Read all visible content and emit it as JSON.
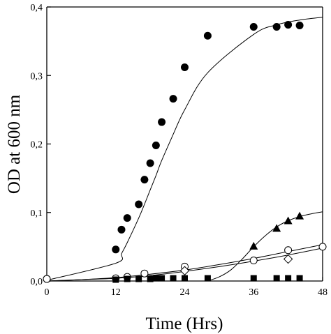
{
  "chart_data": {
    "type": "scatter",
    "title": "",
    "xlabel": "Time (Hrs)",
    "ylabel": "OD at 600 nm",
    "xlim": [
      0,
      48
    ],
    "ylim": [
      0,
      0.4
    ],
    "xticks": [
      0,
      12,
      24,
      36,
      48
    ],
    "xtick_labels": [
      "0",
      "12",
      "24",
      "36",
      "48"
    ],
    "yticks": [
      0,
      0.1,
      0.2,
      0.3,
      0.4
    ],
    "ytick_labels": [
      "0,0",
      "0,1",
      "0,2",
      "0,3",
      "0,4"
    ],
    "grid": false,
    "legend": "none",
    "series": [
      {
        "marker": "filled-circle",
        "fit_curve": true,
        "x": [
          0,
          12,
          13,
          14,
          16,
          17,
          18,
          19,
          20,
          22,
          24,
          28,
          36,
          40,
          42,
          44
        ],
        "y": [
          0.003,
          0.046,
          0.075,
          0.092,
          0.112,
          0.148,
          0.172,
          0.198,
          0.232,
          0.266,
          0.312,
          0.358,
          0.371,
          0.371,
          0.374,
          0.373
        ],
        "fit": {
          "x": [
            0,
            12,
            13,
            14,
            16,
            17,
            18,
            19,
            20,
            22,
            24,
            28,
            36,
            40,
            44,
            48
          ],
          "y": [
            0.001,
            0.026,
            0.04,
            0.056,
            0.092,
            0.112,
            0.133,
            0.154,
            0.176,
            0.214,
            0.25,
            0.304,
            0.36,
            0.374,
            0.381,
            0.385
          ]
        }
      },
      {
        "marker": "filled-triangle",
        "fit_curve": true,
        "x": [
          36,
          40,
          42,
          44
        ],
        "y": [
          0.051,
          0.077,
          0.088,
          0.095
        ],
        "fit": {
          "x": [
            28,
            30,
            32,
            34,
            36,
            38,
            40,
            42,
            44,
            46,
            48
          ],
          "y": [
            0.0,
            0.006,
            0.016,
            0.032,
            0.05,
            0.066,
            0.079,
            0.088,
            0.094,
            0.098,
            0.101
          ]
        }
      },
      {
        "marker": "open-circle",
        "fit_curve": true,
        "x": [
          0,
          12,
          14,
          17,
          24,
          36,
          42,
          48
        ],
        "y": [
          0.003,
          0.004,
          0.006,
          0.011,
          0.021,
          0.03,
          0.045,
          0.05
        ],
        "fit": {
          "x": [
            0,
            6,
            12,
            18,
            24,
            30,
            36,
            42,
            48
          ],
          "y": [
            0.0,
            0.002,
            0.005,
            0.01,
            0.016,
            0.024,
            0.033,
            0.043,
            0.053
          ]
        }
      },
      {
        "marker": "open-diamond",
        "fit_curve": true,
        "x": [
          24,
          42
        ],
        "y": [
          0.015,
          0.032
        ],
        "fit": {
          "x": [
            0,
            6,
            12,
            18,
            24,
            30,
            36,
            42,
            48
          ],
          "y": [
            0.0,
            0.002,
            0.004,
            0.008,
            0.014,
            0.021,
            0.029,
            0.038,
            0.048
          ]
        }
      },
      {
        "marker": "filled-square",
        "fit_curve": false,
        "x": [
          12,
          14,
          16,
          18,
          19,
          20,
          22,
          24,
          28,
          36,
          40,
          42,
          44
        ],
        "y": [
          0.002,
          0.003,
          0.003,
          0.003,
          0.004,
          0.004,
          0.004,
          0.004,
          0.004,
          0.004,
          0.004,
          0.004,
          0.004
        ]
      }
    ]
  }
}
